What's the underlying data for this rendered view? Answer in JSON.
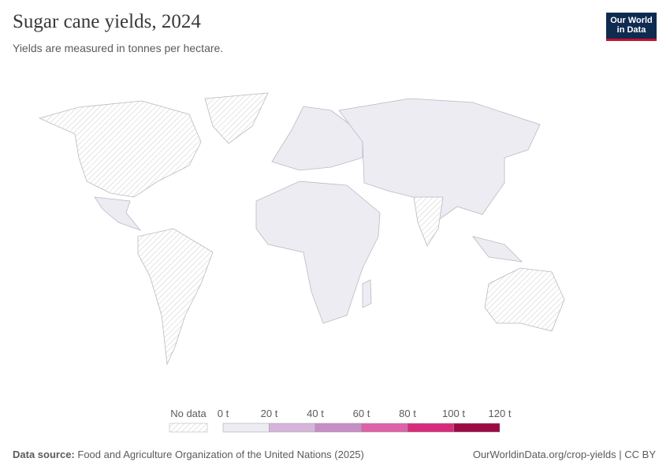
{
  "header": {
    "title": "Sugar cane yields, 2024",
    "subtitle": "Yields are measured in tonnes per hectare."
  },
  "logo": [
    "Our World",
    "in Data"
  ],
  "legend": {
    "no_data": "No data",
    "ticks": [
      {
        "value": 0,
        "label": "0 t"
      },
      {
        "value": 20,
        "label": "20 t"
      },
      {
        "value": 40,
        "label": "40 t"
      },
      {
        "value": 60,
        "label": "60 t"
      },
      {
        "value": 80,
        "label": "80 t"
      },
      {
        "value": 100,
        "label": "100 t"
      },
      {
        "value": 120,
        "label": "120 t"
      }
    ],
    "colors": [
      "#eeecf3",
      "#d6b5da",
      "#c58fc5",
      "#dd62a8",
      "#d82a7a",
      "#9b0a45"
    ]
  },
  "footer": {
    "source_label": "Data source:",
    "source": "Food and Agriculture Organization of the United Nations (2025)",
    "url": "OurWorldinData.org/crop-yields | CC BY"
  }
}
